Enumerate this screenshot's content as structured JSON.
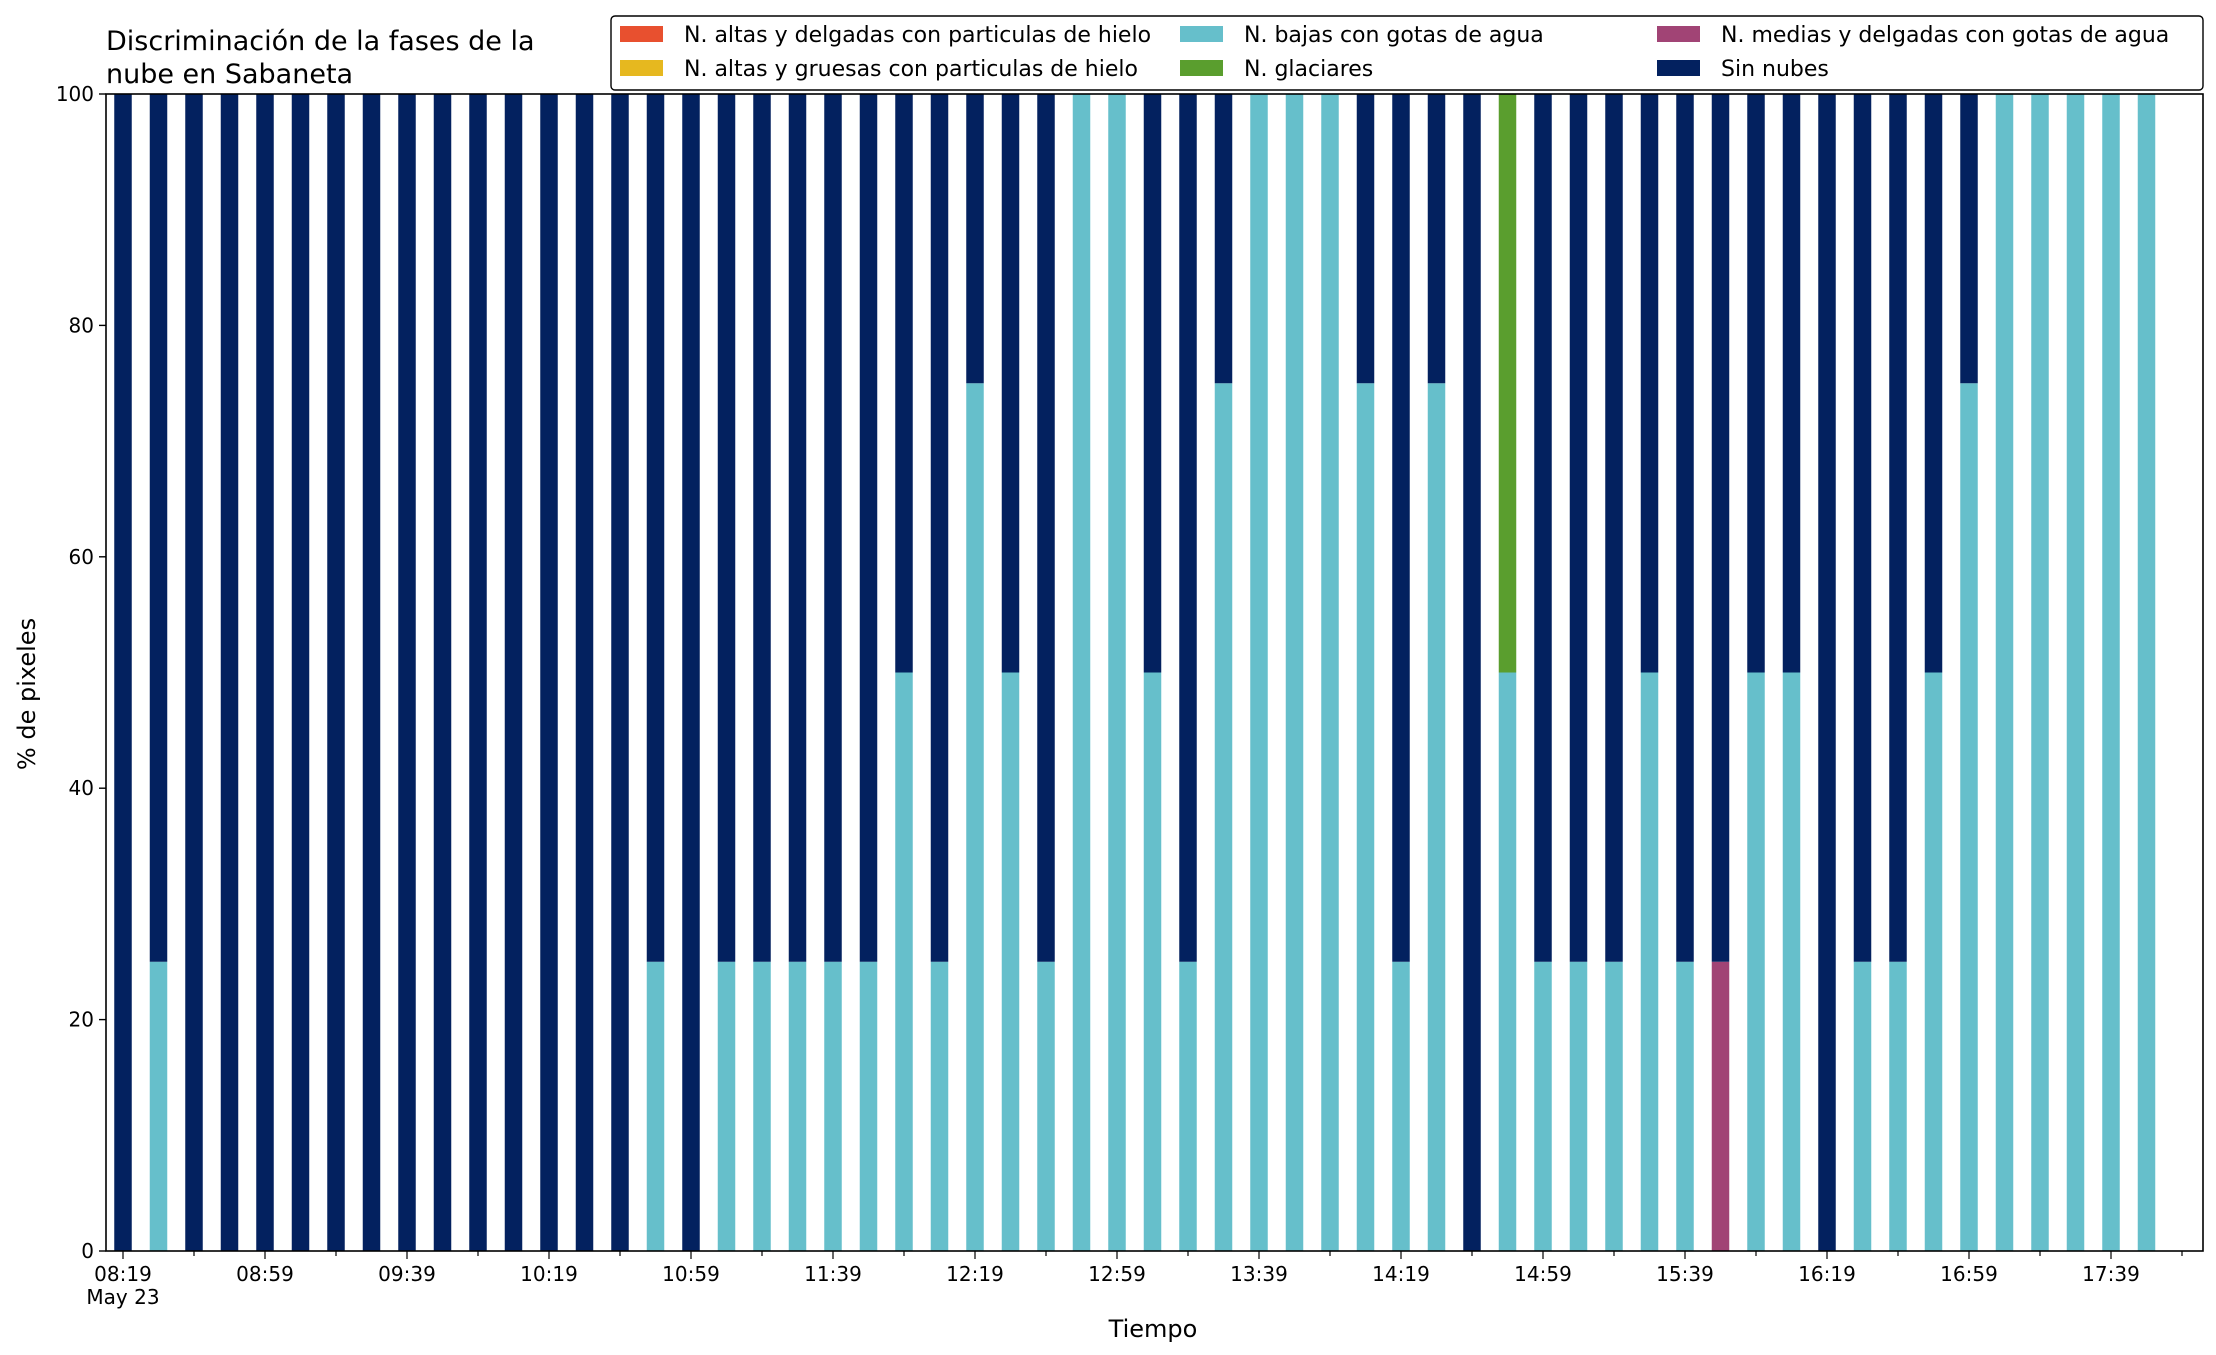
{
  "chart_data": {
    "type": "bar",
    "stacked": true,
    "title_lines": [
      "Discriminación de la fases de la",
      "nube en Sabaneta"
    ],
    "xlabel": "Tiempo",
    "ylabel": "% de pixeles",
    "ylim": [
      0,
      100
    ],
    "yticks": [
      0,
      20,
      40,
      60,
      80,
      100
    ],
    "xtick_labels": [
      "08:19",
      "08:59",
      "09:39",
      "10:19",
      "10:59",
      "11:39",
      "12:19",
      "12:59",
      "13:39",
      "14:19",
      "14:59",
      "15:39",
      "16:19",
      "16:59",
      "17:39"
    ],
    "xtick_sublabel": "May 23",
    "grid": false,
    "legend_position": "top-right",
    "categories": [
      "08:19",
      "08:29",
      "08:39",
      "08:49",
      "08:59",
      "09:09",
      "09:19",
      "09:29",
      "09:39",
      "09:49",
      "09:59",
      "10:09",
      "10:19",
      "10:29",
      "10:39",
      "10:49",
      "10:59",
      "11:09",
      "11:19",
      "11:29",
      "11:39",
      "11:49",
      "11:59",
      "12:09",
      "12:19",
      "12:29",
      "12:39",
      "12:49",
      "12:59",
      "13:09",
      "13:19",
      "13:29",
      "13:39",
      "13:49",
      "13:59",
      "14:09",
      "14:19",
      "14:29",
      "14:39",
      "14:49",
      "14:59",
      "15:09",
      "15:19",
      "15:29",
      "15:39",
      "15:49",
      "15:59",
      "16:09",
      "16:19",
      "16:29",
      "16:39",
      "16:49",
      "16:59",
      "17:09",
      "17:19",
      "17:29",
      "17:39",
      "17:49",
      "17:59"
    ],
    "series": [
      {
        "name": "N. altas y delgadas con particulas de hielo",
        "color": "#e8502f",
        "values": [
          0,
          0,
          0,
          0,
          0,
          0,
          0,
          0,
          0,
          0,
          0,
          0,
          0,
          0,
          0,
          0,
          0,
          0,
          0,
          0,
          0,
          0,
          0,
          0,
          0,
          0,
          0,
          0,
          0,
          0,
          0,
          0,
          0,
          0,
          0,
          0,
          0,
          0,
          0,
          0,
          0,
          0,
          0,
          0,
          0,
          0,
          0,
          0,
          0,
          0,
          0,
          0,
          0,
          0,
          0,
          0,
          0,
          0,
          0
        ]
      },
      {
        "name": "N. altas y gruesas con particulas de hielo",
        "color": "#e6b81f",
        "values": [
          0,
          0,
          0,
          0,
          0,
          0,
          0,
          0,
          0,
          0,
          0,
          0,
          0,
          0,
          0,
          0,
          0,
          0,
          0,
          0,
          0,
          0,
          0,
          0,
          0,
          0,
          0,
          0,
          0,
          0,
          0,
          0,
          0,
          0,
          0,
          0,
          0,
          0,
          0,
          0,
          0,
          0,
          0,
          0,
          0,
          0,
          0,
          0,
          0,
          0,
          0,
          0,
          0,
          0,
          0,
          0,
          0,
          0,
          0
        ]
      },
      {
        "name": "N. bajas con gotas de agua",
        "color": "#66bfcb",
        "values": [
          0,
          25,
          0,
          0,
          0,
          0,
          0,
          0,
          0,
          0,
          0,
          0,
          0,
          0,
          0,
          25,
          0,
          25,
          25,
          25,
          25,
          25,
          50,
          25,
          75,
          50,
          25,
          100,
          100,
          50,
          25,
          75,
          100,
          100,
          100,
          75,
          25,
          75,
          0,
          50,
          25,
          25,
          25,
          50,
          25,
          0,
          50,
          50,
          0,
          25,
          25,
          50,
          75,
          100,
          100,
          100,
          100,
          100,
          0
        ]
      },
      {
        "name": "N. glaciares",
        "color": "#5a9e2e",
        "values": [
          0,
          0,
          0,
          0,
          0,
          0,
          0,
          0,
          0,
          0,
          0,
          0,
          0,
          0,
          0,
          0,
          0,
          0,
          0,
          0,
          0,
          0,
          0,
          0,
          0,
          0,
          0,
          0,
          0,
          0,
          0,
          0,
          0,
          0,
          0,
          0,
          0,
          0,
          0,
          50,
          0,
          0,
          0,
          0,
          0,
          0,
          0,
          0,
          0,
          0,
          0,
          0,
          0,
          0,
          0,
          0,
          0,
          0,
          0
        ]
      },
      {
        "name": "N. medias y delgadas con gotas de agua",
        "color": "#a14475",
        "values": [
          0,
          0,
          0,
          0,
          0,
          0,
          0,
          0,
          0,
          0,
          0,
          0,
          0,
          0,
          0,
          0,
          0,
          0,
          0,
          0,
          0,
          0,
          0,
          0,
          0,
          0,
          0,
          0,
          0,
          0,
          0,
          0,
          0,
          0,
          0,
          0,
          0,
          0,
          0,
          0,
          0,
          0,
          0,
          0,
          0,
          25,
          0,
          0,
          0,
          0,
          0,
          0,
          0,
          0,
          0,
          0,
          0,
          0,
          0
        ]
      },
      {
        "name": "Sin nubes",
        "color": "#03215f",
        "values": [
          100,
          75,
          100,
          100,
          100,
          100,
          100,
          100,
          100,
          100,
          100,
          100,
          100,
          100,
          100,
          75,
          100,
          75,
          75,
          75,
          75,
          75,
          50,
          75,
          25,
          50,
          75,
          0,
          0,
          50,
          75,
          25,
          0,
          0,
          0,
          25,
          75,
          25,
          100,
          0,
          75,
          75,
          75,
          50,
          75,
          75,
          50,
          50,
          100,
          75,
          75,
          50,
          25,
          0,
          0,
          0,
          0,
          0,
          0
        ]
      }
    ]
  }
}
